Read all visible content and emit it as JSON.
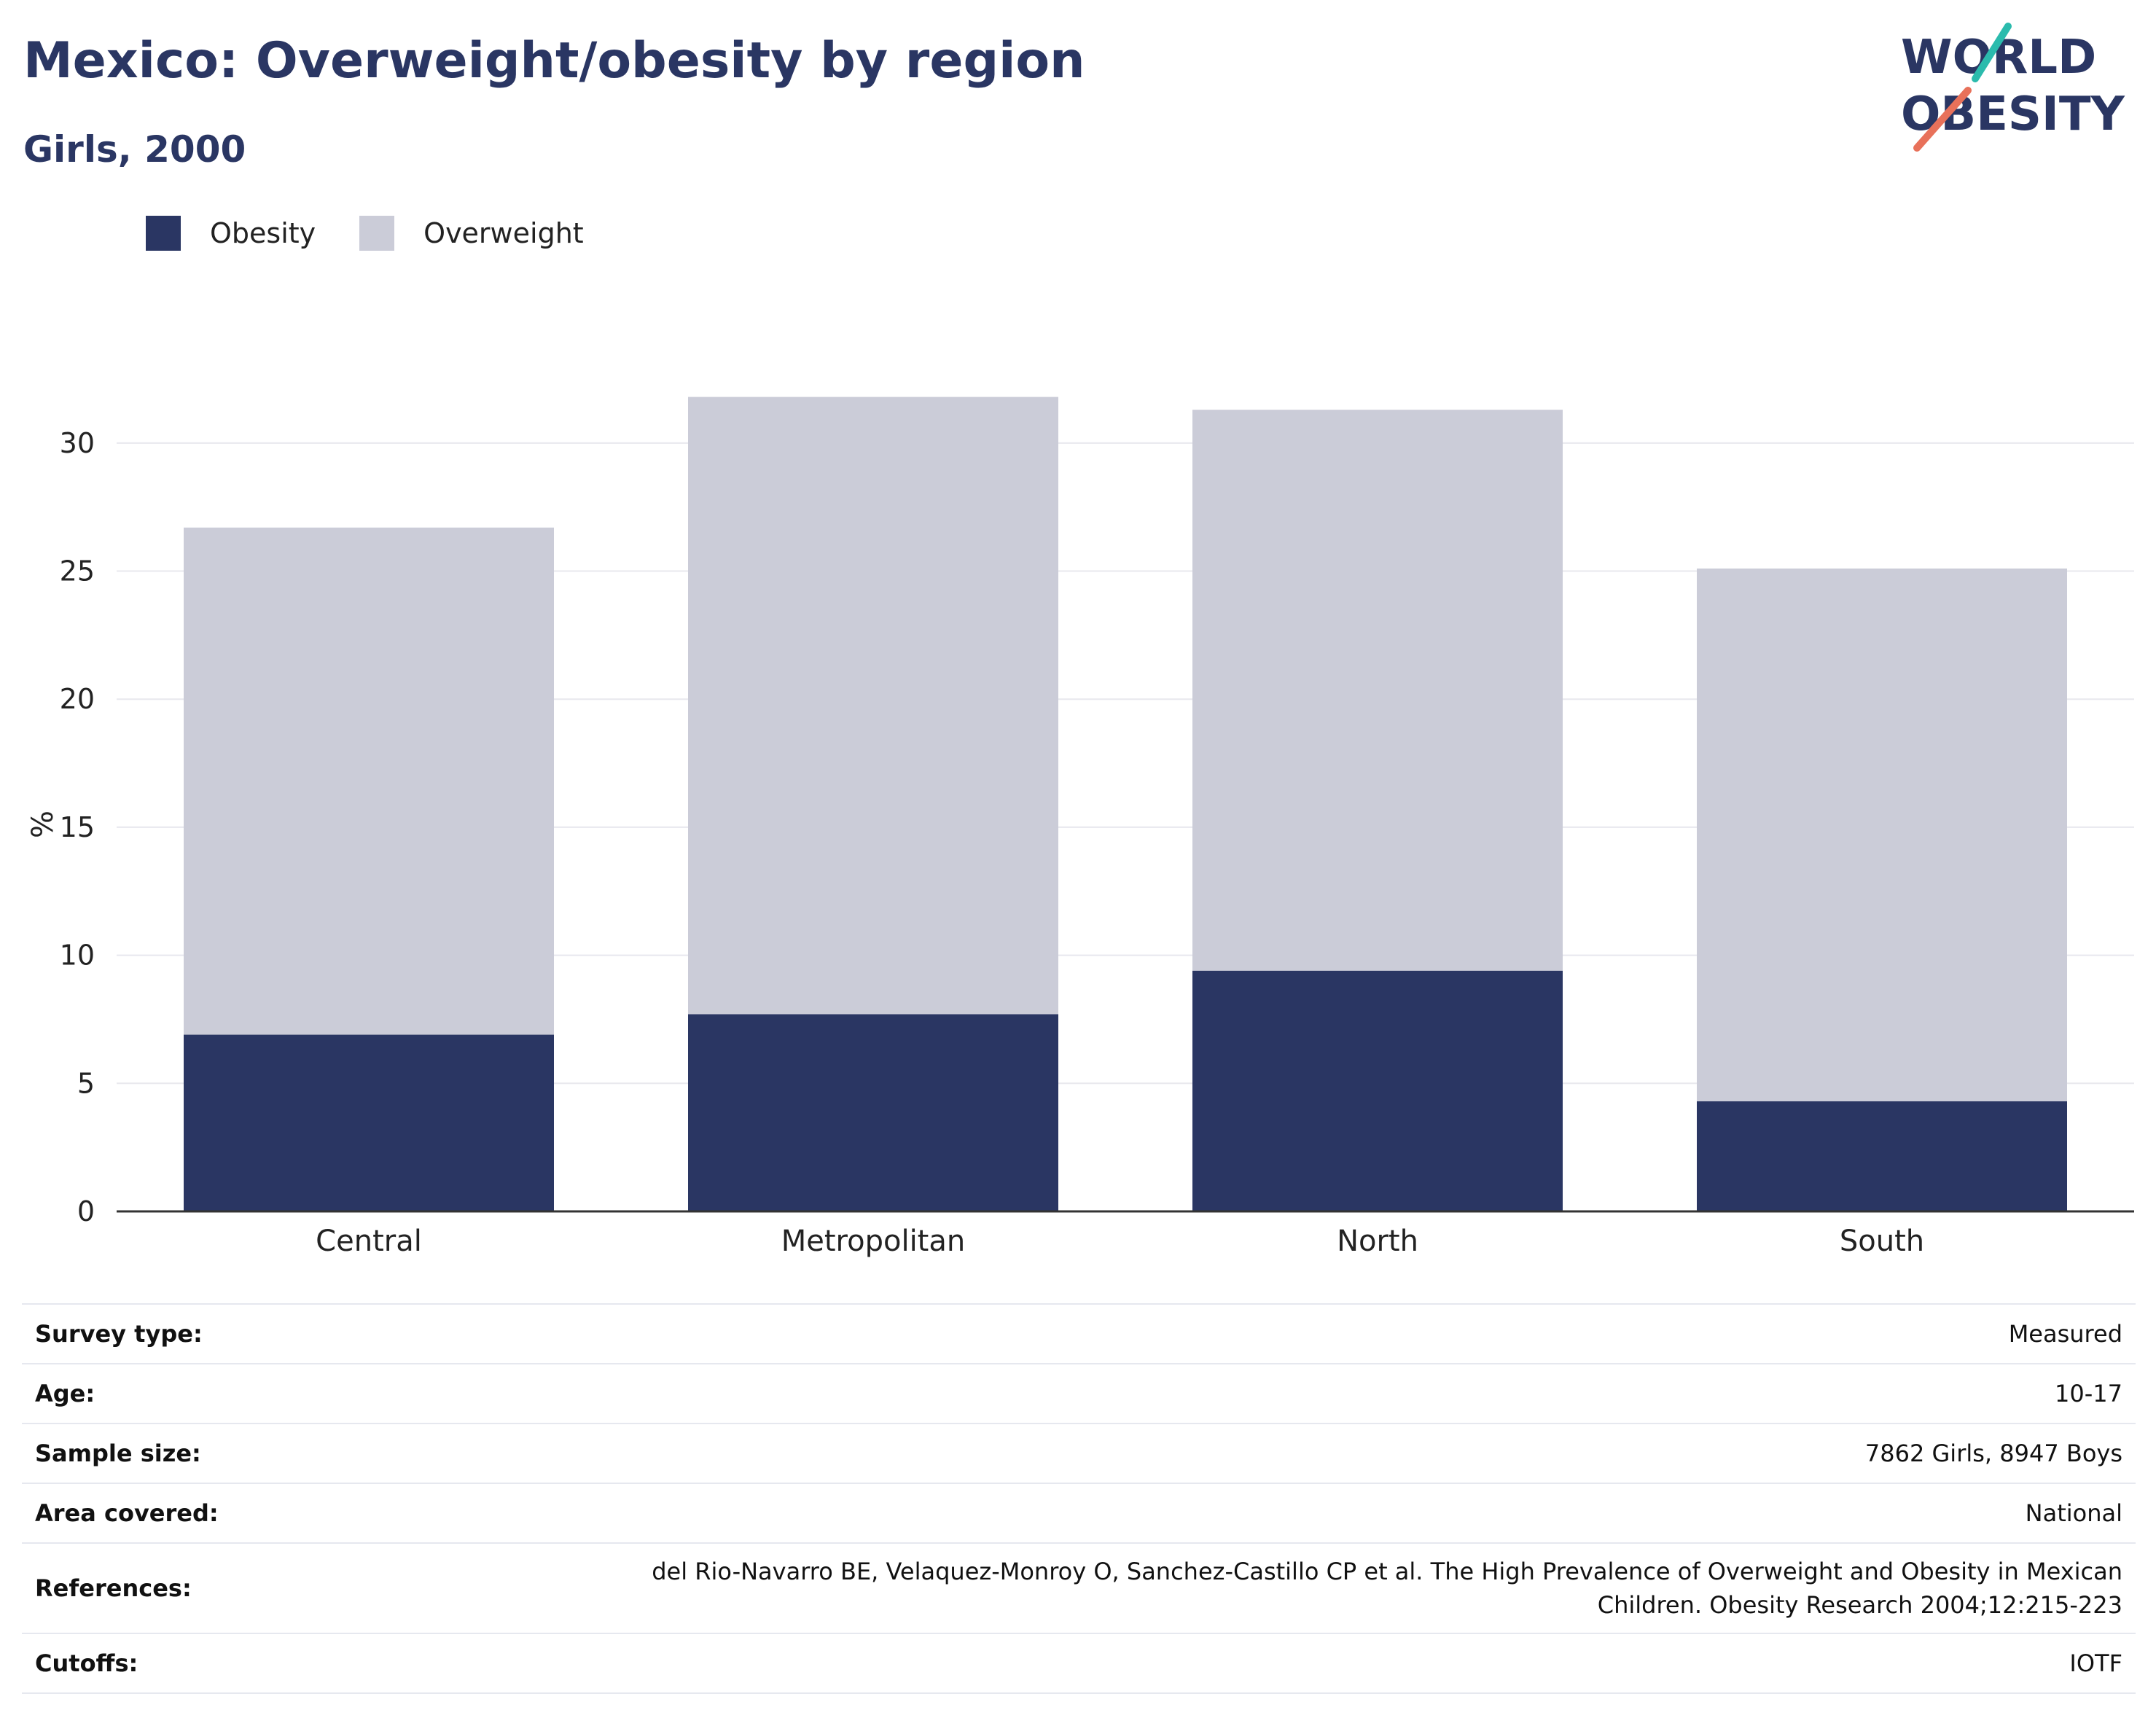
{
  "header": {
    "title": "Mexico: Overweight/obesity by region",
    "subtitle": "Girls, 2000"
  },
  "logo": {
    "line1": "WORLD",
    "line2": "OBESITY"
  },
  "colors": {
    "obesity": "#2a3663",
    "overweight": "#cbccd8",
    "grid": "#e8e8ee",
    "axis": "#333333",
    "logo_text": "#2a3663",
    "logo_teal": "#2bbbad",
    "logo_coral": "#e8715a"
  },
  "legend": [
    {
      "label": "Obesity",
      "color": "#2a3663"
    },
    {
      "label": "Overweight",
      "color": "#cbccd8"
    }
  ],
  "chart_data": {
    "type": "bar",
    "stacked": true,
    "categories": [
      "Central",
      "Metropolitan",
      "North",
      "South"
    ],
    "series": [
      {
        "name": "Obesity",
        "values": [
          6.9,
          7.7,
          9.4,
          4.3
        ]
      },
      {
        "name": "Overweight",
        "values": [
          19.8,
          24.1,
          21.9,
          20.8
        ]
      }
    ],
    "ylabel": "%",
    "xlabel": "",
    "ylim": [
      0,
      32.5
    ],
    "yticks": [
      0,
      5,
      10,
      15,
      20,
      25,
      30
    ],
    "grid": true,
    "legend_position": "top-left"
  },
  "meta": [
    {
      "key": "Survey type:",
      "value": "Measured"
    },
    {
      "key": "Age:",
      "value": "10-17"
    },
    {
      "key": "Sample size:",
      "value": "7862 Girls, 8947 Boys"
    },
    {
      "key": "Area covered:",
      "value": "National"
    },
    {
      "key": "References:",
      "value_lines": [
        "del Rio-Navarro BE, Velaquez-Monroy O, Sanchez-Castillo CP et al. The High Prevalence of Overweight and Obesity in Mexican",
        "Children. Obesity Research 2004;12:215-223"
      ]
    },
    {
      "key": "Cutoffs:",
      "value": "IOTF"
    }
  ]
}
